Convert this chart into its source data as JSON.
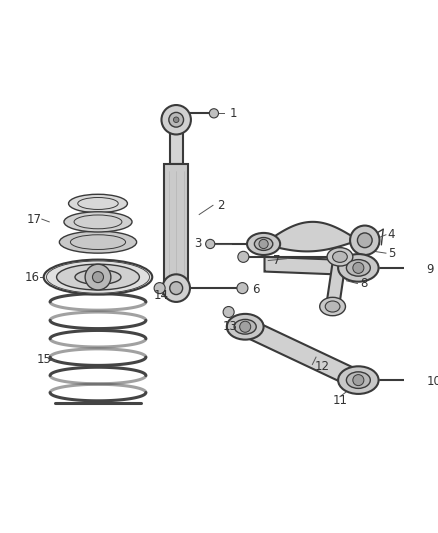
{
  "background_color": "#ffffff",
  "line_color": "#3a3a3a",
  "fill_light": "#d8d8d8",
  "fill_mid": "#c0c0c0",
  "fill_dark": "#a8a8a8",
  "fig_width": 4.38,
  "fig_height": 5.33,
  "dpi": 100
}
